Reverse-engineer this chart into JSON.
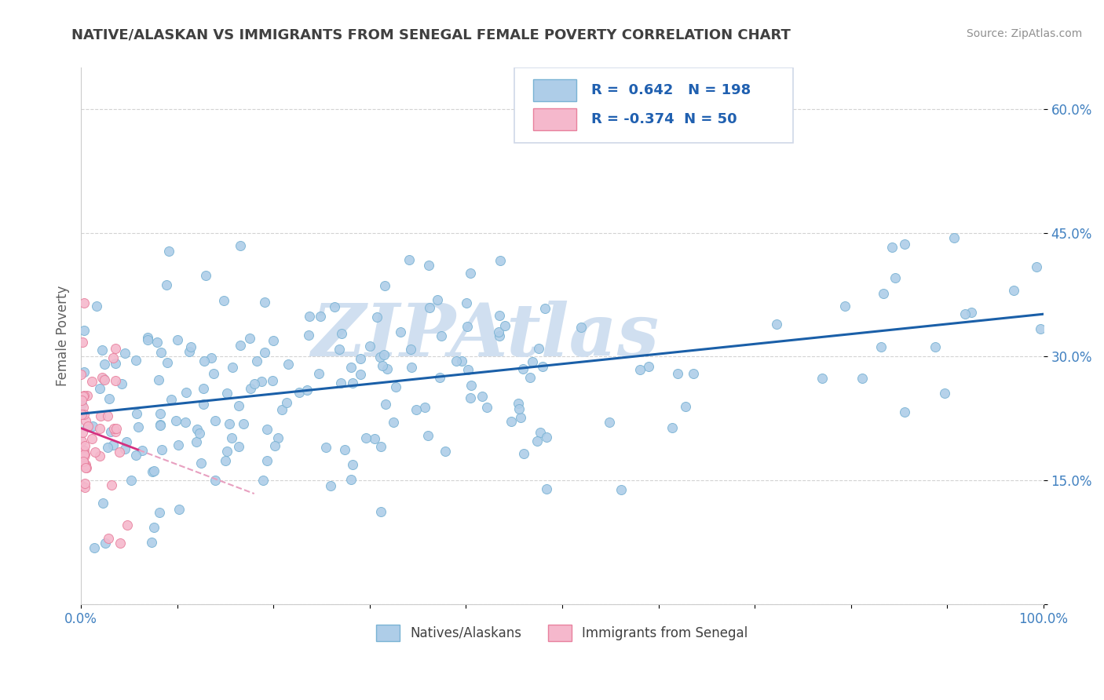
{
  "title": "NATIVE/ALASKAN VS IMMIGRANTS FROM SENEGAL FEMALE POVERTY CORRELATION CHART",
  "source": "Source: ZipAtlas.com",
  "ylabel": "Female Poverty",
  "x_min": 0.0,
  "x_max": 1.0,
  "y_min": 0.0,
  "y_max": 0.65,
  "x_ticks": [
    0.0,
    0.1,
    0.2,
    0.3,
    0.4,
    0.5,
    0.6,
    0.7,
    0.8,
    0.9,
    1.0
  ],
  "y_ticks": [
    0.0,
    0.15,
    0.3,
    0.45,
    0.6
  ],
  "x_tick_labels": [
    "0.0%",
    "",
    "",
    "",
    "",
    "",
    "",
    "",
    "",
    "",
    "100.0%"
  ],
  "y_tick_labels_right": [
    "",
    "15.0%",
    "30.0%",
    "45.0%",
    "60.0%"
  ],
  "legend_labels": [
    "Natives/Alaskans",
    "Immigrants from Senegal"
  ],
  "legend_r_values": [
    "R =  0.642",
    "R = -0.374"
  ],
  "legend_n_values": [
    "N = 198",
    "N = 50"
  ],
  "blue_scatter_fill": "#aecde8",
  "blue_scatter_edge": "#7ab3d4",
  "pink_scatter_fill": "#f5b8cc",
  "pink_scatter_edge": "#e8819e",
  "blue_line_color": "#1a5fa8",
  "pink_line_color": "#d43080",
  "pink_line_dashed_color": "#e8a0c0",
  "watermark_text": "ZIPAtlas",
  "watermark_color": "#d0dff0",
  "background_color": "#ffffff",
  "grid_color": "#c8c8c8",
  "title_color": "#404040",
  "source_color": "#909090",
  "axis_label_color": "#606060",
  "legend_r_color": "#2060b0",
  "tick_label_color": "#4080c0",
  "legend_border_color": "#d0d8e8"
}
